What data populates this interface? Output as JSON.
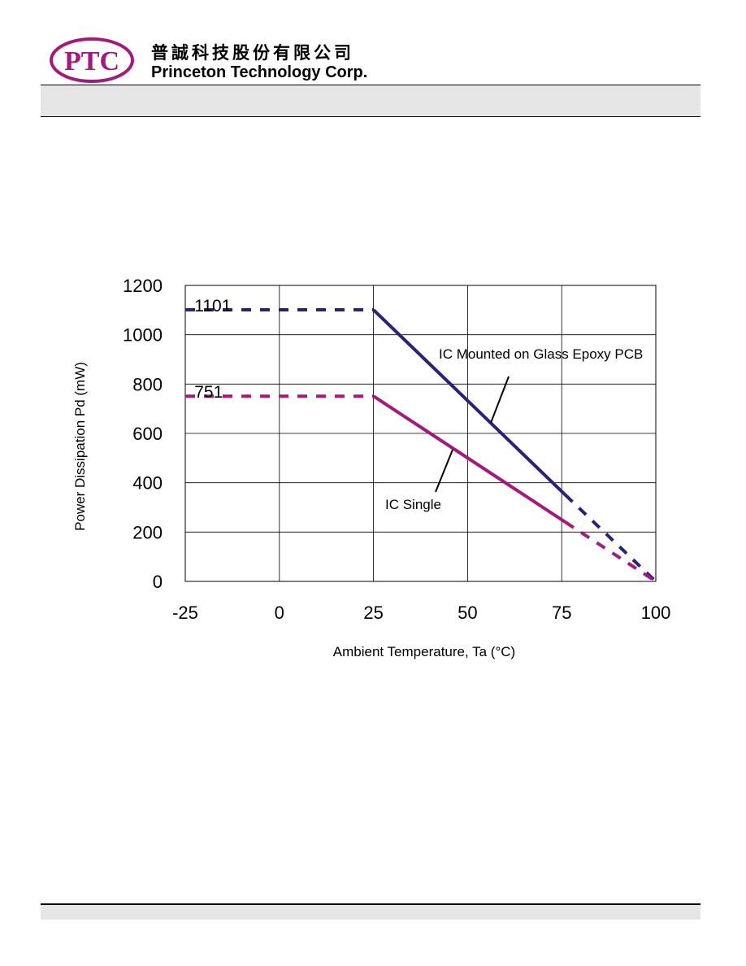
{
  "header": {
    "logo_text": "PTC",
    "company_name_cn": "普誠科技股份有限公司",
    "company_name_en": "Princeton Technology Corp."
  },
  "colors": {
    "brand": "#a3197e",
    "series_pcb": "#2b2177",
    "series_single": "#a3197e",
    "header_bar": "#e6e6e6"
  },
  "chart_data": {
    "type": "line",
    "title": "",
    "xlabel": "Ambient Temperature, Ta (°C)",
    "ylabel": "Power Dissipation Pd (mW)",
    "xlim": [
      -25,
      100
    ],
    "ylim": [
      0,
      1200
    ],
    "x_ticks": [
      "-25",
      "0",
      "25",
      "50",
      "75",
      "100"
    ],
    "y_ticks": [
      "0",
      "200",
      "400",
      "600",
      "800",
      "1000",
      "1200"
    ],
    "grid": true,
    "series": [
      {
        "name": "IC Mounted on Glass Epoxy PCB",
        "color": "#2b2177",
        "dashed_points": [
          [
            -25,
            1101
          ],
          [
            25,
            1101
          ]
        ],
        "solid_points": [
          [
            25,
            1101
          ],
          [
            76,
            350
          ]
        ],
        "dashed_tail_points": [
          [
            76,
            350
          ],
          [
            100,
            0
          ]
        ]
      },
      {
        "name": "IC Single",
        "color": "#a3197e",
        "dashed_points": [
          [
            -25,
            751
          ],
          [
            25,
            751
          ]
        ],
        "solid_points": [
          [
            25,
            751
          ],
          [
            76,
            240
          ]
        ],
        "dashed_tail_points": [
          [
            76,
            240
          ],
          [
            100,
            0
          ]
        ]
      }
    ],
    "annotations": [
      {
        "text": "1101",
        "x": -23,
        "y": 1101
      },
      {
        "text": "751",
        "x": -23,
        "y": 751
      }
    ]
  }
}
